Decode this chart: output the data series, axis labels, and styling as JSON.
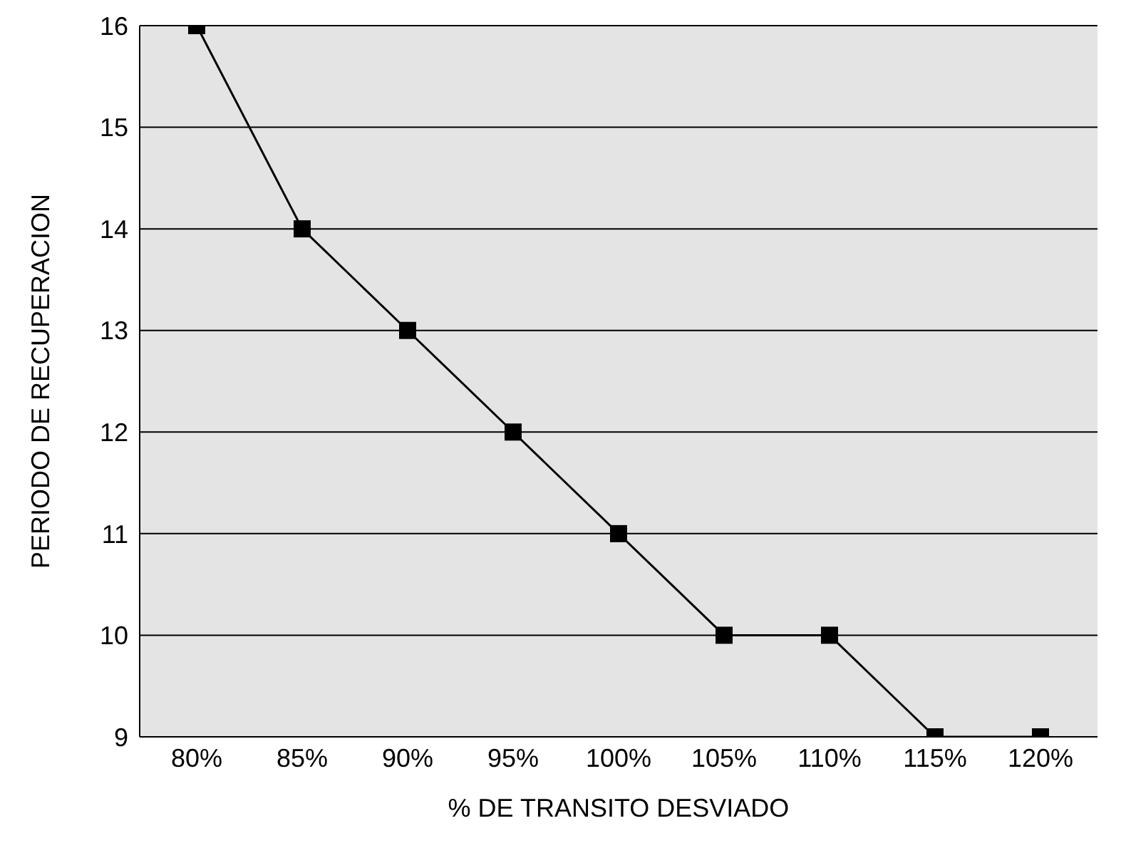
{
  "chart_data": {
    "type": "line",
    "xlabel": "% DE TRANSITO DESVIADO",
    "ylabel": "PERIODO DE RECUPERACION",
    "categories": [
      "80%",
      "85%",
      "90%",
      "95%",
      "100%",
      "105%",
      "110%",
      "115%",
      "120%"
    ],
    "series": [
      {
        "color": "#000000",
        "values": [
          16,
          14,
          13,
          12,
          11,
          10,
          10,
          9,
          9
        ]
      }
    ],
    "ylim": [
      9,
      16
    ],
    "yticks": [
      9,
      10,
      11,
      12,
      13,
      14,
      15,
      16
    ],
    "grid": "y",
    "marker": "square",
    "line_style": "solid"
  }
}
